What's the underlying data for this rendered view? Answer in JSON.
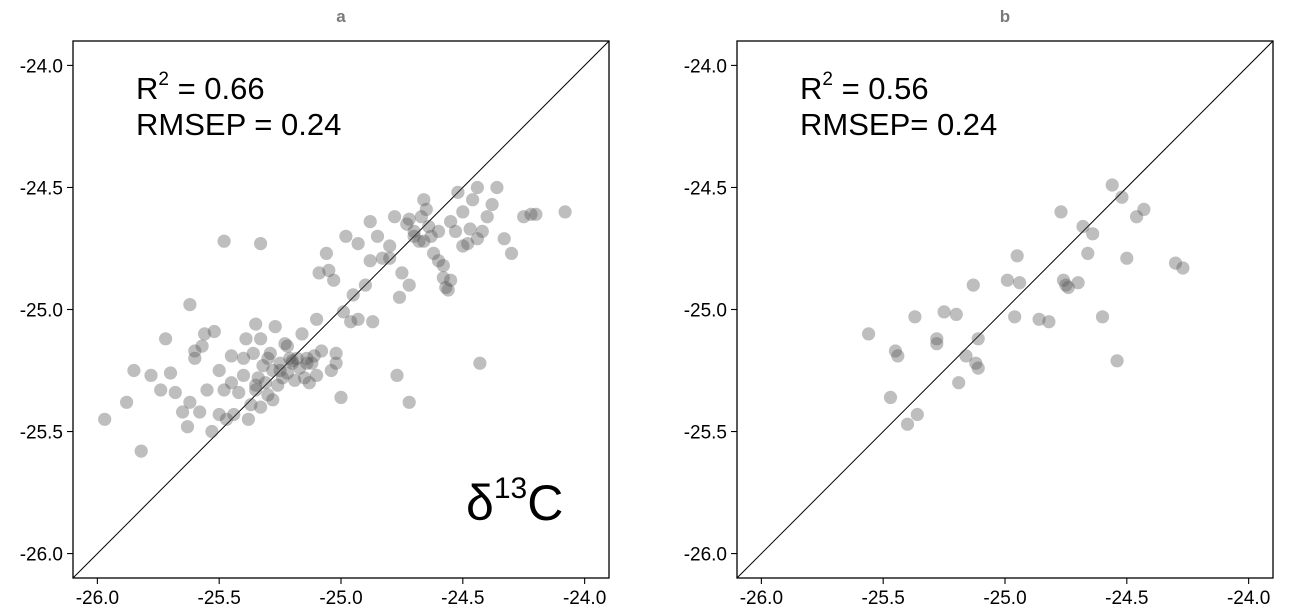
{
  "chart_data": [
    {
      "type": "scatter",
      "title": "a",
      "xlabel": "",
      "ylabel": "",
      "xlim": [
        -26.1,
        -23.9
      ],
      "ylim": [
        -26.1,
        -23.9
      ],
      "xticks": [
        "-26.0",
        "-25.5",
        "-25.0",
        "-24.5",
        "-24.0"
      ],
      "yticks": [
        "-24.0",
        "-24.5",
        "-25.0",
        "-25.5",
        "-26.0"
      ],
      "reference_line": "1:1",
      "point_color": "#555555",
      "stats": {
        "r2_label": "R",
        "r2_sup": "2",
        "r2_value": " = 0.66",
        "rmsep": "RMSEP = 0.24"
      },
      "annotation": {
        "prefix": "δ",
        "sup": "13",
        "suffix": "C"
      },
      "x": [
        -25.97,
        -25.88,
        -25.85,
        -25.82,
        -25.78,
        -25.74,
        -25.72,
        -25.7,
        -25.68,
        -25.63,
        -25.62,
        -25.6,
        -25.58,
        -25.57,
        -25.55,
        -25.53,
        -25.52,
        -25.5,
        -25.5,
        -25.48,
        -25.47,
        -25.45,
        -25.44,
        -25.42,
        -25.4,
        -25.39,
        -25.38,
        -25.37,
        -25.36,
        -25.35,
        -25.35,
        -25.34,
        -25.33,
        -25.33,
        -25.32,
        -25.31,
        -25.3,
        -25.29,
        -25.28,
        -25.27,
        -25.26,
        -25.25,
        -25.24,
        -25.23,
        -25.22,
        -25.21,
        -25.2,
        -25.19,
        -25.18,
        -25.17,
        -25.16,
        -25.15,
        -25.14,
        -25.13,
        -25.12,
        -25.11,
        -25.1,
        -25.09,
        -25.08,
        -25.06,
        -25.04,
        -25.03,
        -25.02,
        -25.0,
        -24.98,
        -24.96,
        -24.95,
        -24.93,
        -24.9,
        -24.88,
        -24.85,
        -24.83,
        -24.8,
        -24.78,
        -24.75,
        -24.73,
        -24.72,
        -24.7,
        -24.68,
        -24.67,
        -24.66,
        -24.65,
        -24.64,
        -24.63,
        -24.62,
        -24.6,
        -24.58,
        -24.57,
        -24.55,
        -24.53,
        -24.5,
        -24.48,
        -24.46,
        -24.44,
        -24.42,
        -24.4,
        -24.38,
        -24.36,
        -24.33,
        -24.3,
        -24.25,
        -24.22,
        -24.2,
        -24.08,
        -25.48,
        -25.33,
        -25.62,
        -25.56,
        -25.1,
        -25.02,
        -24.99,
        -24.93,
        -24.87,
        -24.77,
        -24.72,
        -24.66,
        -24.55,
        -24.5,
        -24.43,
        -24.72,
        -24.56,
        -24.44,
        -24.7,
        -24.76,
        -24.88,
        -24.58,
        -25.35,
        -25.3,
        -25.25,
        -25.2,
        -25.4,
        -25.45,
        -25.28,
        -25.22,
        -25.65,
        -25.6,
        -25.14,
        -25.05,
        -24.8,
        -24.6,
        -24.52,
        -24.47
      ],
      "y": [
        -25.45,
        -25.38,
        -25.25,
        -25.58,
        -25.27,
        -25.33,
        -25.12,
        -25.26,
        -25.34,
        -25.48,
        -25.38,
        -25.2,
        -25.42,
        -25.15,
        -25.33,
        -25.5,
        -25.09,
        -25.43,
        -25.25,
        -25.33,
        -25.45,
        -25.19,
        -25.43,
        -25.34,
        -25.27,
        -25.12,
        -25.45,
        -25.39,
        -25.18,
        -25.31,
        -25.06,
        -25.28,
        -25.12,
        -25.4,
        -25.23,
        -25.3,
        -25.35,
        -25.18,
        -25.25,
        -25.07,
        -25.31,
        -25.22,
        -25.28,
        -25.14,
        -25.26,
        -25.2,
        -25.22,
        -25.29,
        -25.2,
        -25.24,
        -25.1,
        -25.28,
        -25.2,
        -25.3,
        -25.22,
        -25.19,
        -25.27,
        -24.85,
        -25.17,
        -24.77,
        -25.25,
        -24.88,
        -25.22,
        -25.36,
        -24.7,
        -25.05,
        -24.94,
        -24.73,
        -24.9,
        -24.64,
        -24.7,
        -24.79,
        -24.74,
        -24.62,
        -24.85,
        -24.65,
        -24.9,
        -24.68,
        -24.72,
        -24.62,
        -24.55,
        -24.59,
        -24.66,
        -24.7,
        -24.77,
        -24.8,
        -24.82,
        -24.91,
        -24.64,
        -24.68,
        -24.6,
        -24.73,
        -24.55,
        -24.5,
        -24.68,
        -24.62,
        -24.57,
        -24.5,
        -24.71,
        -24.77,
        -24.62,
        -24.61,
        -24.61,
        -24.6,
        -24.72,
        -24.73,
        -24.98,
        -25.1,
        -25.04,
        -25.18,
        -25.01,
        -25.04,
        -25.05,
        -25.27,
        -25.38,
        -24.72,
        -24.88,
        -24.74,
        -25.22,
        -24.63,
        -24.92,
        -24.71,
        -24.7,
        -24.95,
        -24.8,
        -24.87,
        -25.33,
        -25.2,
        -25.25,
        -25.21,
        -25.2,
        -25.3,
        -25.37,
        -25.15,
        -25.42,
        -25.17,
        -25.22,
        -24.84,
        -24.79,
        -24.68,
        -24.52,
        -24.67
      ]
    },
    {
      "type": "scatter",
      "title": "b",
      "xlabel": "",
      "ylabel": "",
      "xlim": [
        -26.1,
        -23.9
      ],
      "ylim": [
        -26.1,
        -23.9
      ],
      "xticks": [
        "-26.0",
        "-25.5",
        "-25.0",
        "-24.5",
        "-24.0"
      ],
      "yticks": [
        "-24.0",
        "-24.5",
        "-25.0",
        "-25.5",
        "-26.0"
      ],
      "reference_line": "1:1",
      "point_color": "#555555",
      "stats": {
        "r2_label": "R",
        "r2_sup": "2",
        "r2_value": " = 0.56",
        "rmsep": "RMSEP= 0.24"
      },
      "x": [
        -25.56,
        -25.47,
        -25.45,
        -25.44,
        -25.4,
        -25.37,
        -25.36,
        -25.28,
        -25.28,
        -25.25,
        -25.2,
        -25.19,
        -25.16,
        -25.13,
        -25.12,
        -25.11,
        -25.11,
        -24.99,
        -24.96,
        -24.95,
        -24.94,
        -24.86,
        -24.82,
        -24.77,
        -24.76,
        -24.75,
        -24.74,
        -24.7,
        -24.68,
        -24.66,
        -24.64,
        -24.6,
        -24.56,
        -24.54,
        -24.52,
        -24.5,
        -24.46,
        -24.43,
        -24.3,
        -24.27
      ],
      "y": [
        -25.1,
        -25.36,
        -25.17,
        -25.19,
        -25.47,
        -25.03,
        -25.43,
        -25.12,
        -25.14,
        -25.01,
        -25.02,
        -25.3,
        -25.19,
        -24.9,
        -25.22,
        -25.12,
        -25.24,
        -24.88,
        -25.03,
        -24.78,
        -24.89,
        -25.04,
        -25.05,
        -24.6,
        -24.88,
        -24.9,
        -24.91,
        -24.89,
        -24.66,
        -24.77,
        -24.69,
        -25.03,
        -24.49,
        -25.21,
        -24.54,
        -24.79,
        -24.62,
        -24.59,
        -24.81,
        -24.83
      ]
    }
  ]
}
